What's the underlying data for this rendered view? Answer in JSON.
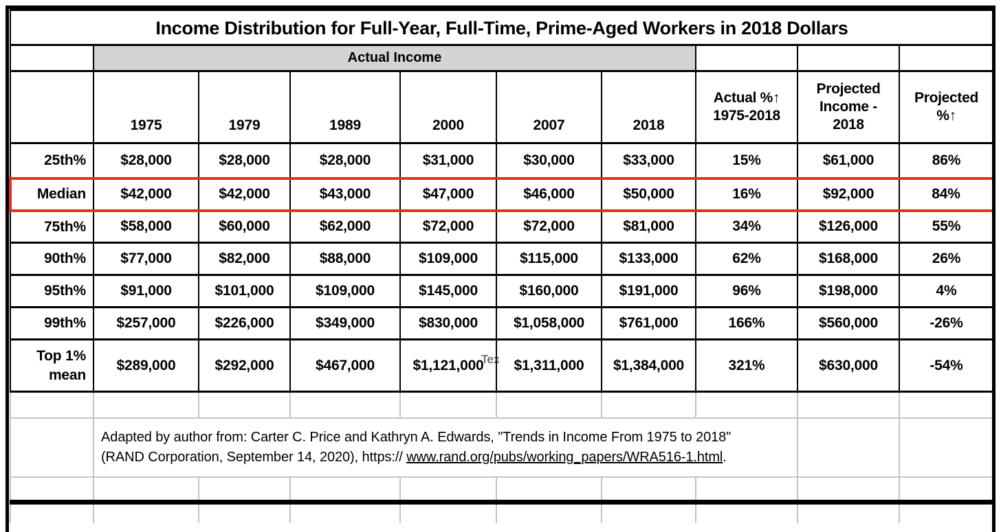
{
  "chart_data": {
    "type": "table",
    "title": "Income Distribution for Full-Year, Full-Time, Prime-Aged Workers in 2018 Dollars",
    "group_header": "Actual Income",
    "group_span_columns": [
      "1975",
      "1979",
      "1989",
      "2000",
      "2007",
      "2018"
    ],
    "columns": [
      "1975",
      "1979",
      "1989",
      "2000",
      "2007",
      "2018",
      "Actual %↑ 1975-2018",
      "Projected Income - 2018",
      "Projected %↑"
    ],
    "highlighted_row": "Median",
    "rows": [
      {
        "label": "25th%",
        "values": [
          "$28,000",
          "$28,000",
          "$28,000",
          "$31,000",
          "$30,000",
          "$33,000",
          "15%",
          "$61,000",
          "86%"
        ],
        "highlight": false
      },
      {
        "label": "Median",
        "values": [
          "$42,000",
          "$42,000",
          "$43,000",
          "$47,000",
          "$46,000",
          "$50,000",
          "16%",
          "$92,000",
          "84%"
        ],
        "highlight": true
      },
      {
        "label": "75th%",
        "values": [
          "$58,000",
          "$60,000",
          "$62,000",
          "$72,000",
          "$72,000",
          "$81,000",
          "34%",
          "$126,000",
          "55%"
        ],
        "highlight": false
      },
      {
        "label": "90th%",
        "values": [
          "$77,000",
          "$82,000",
          "$88,000",
          "$109,000",
          "$115,000",
          "$133,000",
          "62%",
          "$168,000",
          "26%"
        ],
        "highlight": false
      },
      {
        "label": "95th%",
        "values": [
          "$91,000",
          "$101,000",
          "$109,000",
          "$145,000",
          "$160,000",
          "$191,000",
          "96%",
          "$198,000",
          "4%"
        ],
        "highlight": false
      },
      {
        "label": "99th%",
        "values": [
          "$257,000",
          "$226,000",
          "$349,000",
          "$830,000",
          "$1,058,000",
          "$761,000",
          "166%",
          "$560,000",
          "-26%"
        ],
        "highlight": false
      },
      {
        "label": "Top 1%\nmean",
        "values": [
          "$289,000",
          "$292,000",
          "$467,000",
          "$1,121,000",
          "$1,311,000",
          "$1,384,000",
          "321%",
          "$630,000",
          "-54%"
        ],
        "highlight": false
      }
    ],
    "footnote": "Adapted by author from: Carter C. Price and Kathryn A. Edwards, \"Trends in Income From 1975 to 2018\" (RAND Corporation, September 14, 2020), https:// www.rand.org/pubs/working_papers/WRA516-1.html."
  },
  "headers": {
    "year_1975": "1975",
    "year_1979": "1979",
    "year_1989": "1989",
    "year_2000": "2000",
    "year_2007": "2007",
    "year_2018": "2018",
    "actual_pct": "Actual %↑\n1975-2018",
    "projected_income": "Projected\nIncome -\n2018",
    "projected_pct": "Projected\n%↑"
  },
  "footnote": {
    "text_before": "Adapted by author from: Carter C. Price and Kathryn A. Edwards, \"Trends in Income From 1975 to 2018\" (RAND Corporation, September 14, 2020), https:// ",
    "link_part1": "www.rand.org/pubs/working_papers/",
    "link_part2": "WRA516-1.html",
    "text_after": "."
  },
  "artifact": {
    "text": "Tex"
  },
  "colors": {
    "highlight_border": "#e2321c",
    "group_header_bg": "#d4d4d4"
  }
}
